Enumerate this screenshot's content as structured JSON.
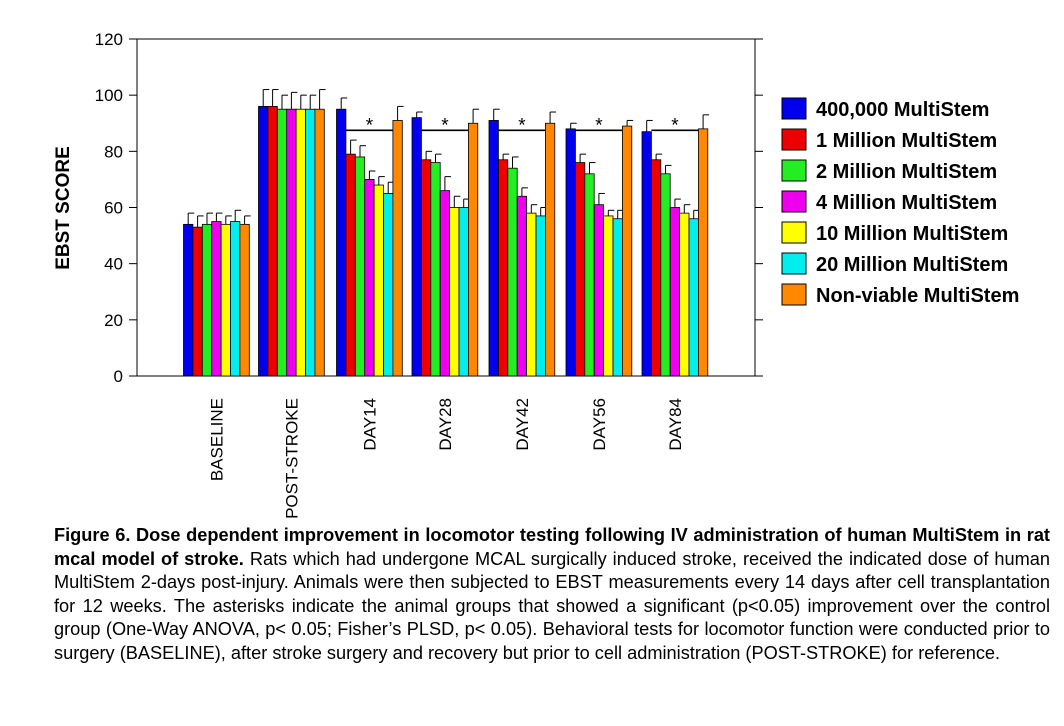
{
  "chart_data": {
    "type": "bar",
    "ylabel": "EBST SCORE",
    "xlabel": "",
    "ylim": [
      0,
      120
    ],
    "yticks": [
      0,
      20,
      40,
      60,
      80,
      100,
      120
    ],
    "categories": [
      "BASELINE",
      "POST-STROKE",
      "DAY14",
      "DAY28",
      "DAY42",
      "DAY56",
      "DAY84"
    ],
    "legend_position": "right",
    "series": [
      {
        "name": "400,000 MultiStem",
        "color": "#0000ee",
        "values": [
          54,
          96,
          95,
          92,
          91,
          88,
          87
        ],
        "errors": [
          4,
          6,
          4,
          2,
          4,
          2,
          4
        ]
      },
      {
        "name": "1 Million MultiStem",
        "color": "#ee0000",
        "values": [
          53,
          96,
          79,
          77,
          77,
          76,
          77
        ],
        "errors": [
          4,
          6,
          5,
          3,
          2,
          3,
          2
        ]
      },
      {
        "name": "2 Million MultiStem",
        "color": "#22ee22",
        "values": [
          54,
          95,
          78,
          76,
          74,
          72,
          72
        ],
        "errors": [
          4,
          5,
          4,
          3,
          4,
          4,
          3
        ]
      },
      {
        "name": "4 Million MultiStem",
        "color": "#ee00ee",
        "values": [
          55,
          95,
          70,
          66,
          64,
          61,
          60
        ],
        "errors": [
          3,
          6,
          3,
          5,
          3,
          4,
          3
        ]
      },
      {
        "name": "10 Million MultiStem",
        "color": "#ffff00",
        "values": [
          54,
          95,
          68,
          60,
          58,
          57,
          58
        ],
        "errors": [
          3,
          5,
          3,
          4,
          3,
          2,
          3
        ]
      },
      {
        "name": "20 Million MultiStem",
        "color": "#00eeee",
        "values": [
          55,
          95,
          65,
          60,
          57,
          56,
          56
        ],
        "errors": [
          4,
          5,
          4,
          3,
          3,
          3,
          3
        ]
      },
      {
        "name": "Non-viable MultiStem",
        "color": "#ff8800",
        "values": [
          54,
          95,
          91,
          90,
          90,
          89,
          88
        ],
        "errors": [
          3,
          7,
          5,
          5,
          4,
          2,
          5
        ]
      }
    ],
    "significance": {
      "marker": "*",
      "categories": [
        "DAY14",
        "DAY28",
        "DAY42",
        "DAY56",
        "DAY84"
      ]
    }
  },
  "caption": {
    "bold": "Figure 6. Dose dependent improvement in locomotor testing following IV administration of human MultiStem in rat mcal model of stroke.",
    "text": " Rats which had undergone MCAL surgically induced stroke, received the indicated dose of human MultiStem 2-days post-injury. Animals were then subjected to EBST measurements every 14 days after cell transplantation for 12 weeks. The asterisks indicate the animal groups that showed a significant (p<0.05) improvement over the control group (One-Way ANOVA, p< 0.05; Fisher’s PLSD, p< 0.05). Behavioral tests for locomotor function were conducted prior to surgery (BASELINE), after stroke surgery and recovery but prior to cell administration (POST-STROKE) for reference."
  }
}
